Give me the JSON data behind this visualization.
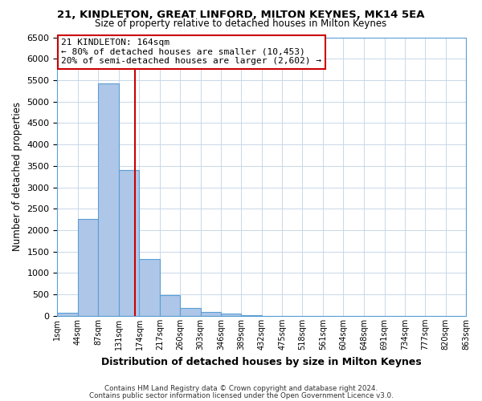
{
  "title": "21, KINDLETON, GREAT LINFORD, MILTON KEYNES, MK14 5EA",
  "subtitle": "Size of property relative to detached houses in Milton Keynes",
  "xlabel": "Distribution of detached houses by size in Milton Keynes",
  "ylabel": "Number of detached properties",
  "bin_edges": [
    1,
    44,
    87,
    131,
    174,
    217,
    260,
    303,
    346,
    389,
    432,
    475,
    518,
    561,
    604,
    648,
    691,
    734,
    777,
    820,
    863
  ],
  "bar_heights": [
    75,
    2270,
    5430,
    3400,
    1320,
    480,
    185,
    85,
    45,
    15,
    5,
    0,
    0,
    0,
    0,
    0,
    0,
    0,
    0,
    0
  ],
  "bar_color": "#aec6e8",
  "bar_edge_color": "#5a9fd4",
  "property_size": 164,
  "vline_color": "#cc0000",
  "annotation_text": "21 KINDLETON: 164sqm\n← 80% of detached houses are smaller (10,453)\n20% of semi-detached houses are larger (2,602) →",
  "annotation_box_color": "#ffffff",
  "annotation_box_edge_color": "#cc0000",
  "ylim": [
    0,
    6500
  ],
  "yticks": [
    0,
    500,
    1000,
    1500,
    2000,
    2500,
    3000,
    3500,
    4000,
    4500,
    5000,
    5500,
    6000,
    6500
  ],
  "tick_labels": [
    "1sqm",
    "44sqm",
    "87sqm",
    "131sqm",
    "174sqm",
    "217sqm",
    "260sqm",
    "303sqm",
    "346sqm",
    "389sqm",
    "432sqm",
    "475sqm",
    "518sqm",
    "561sqm",
    "604sqm",
    "648sqm",
    "691sqm",
    "734sqm",
    "777sqm",
    "820sqm",
    "863sqm"
  ],
  "footer_line1": "Contains HM Land Registry data © Crown copyright and database right 2024.",
  "footer_line2": "Contains public sector information licensed under the Open Government Licence v3.0.",
  "background_color": "#ffffff",
  "grid_color": "#c8d8e8"
}
